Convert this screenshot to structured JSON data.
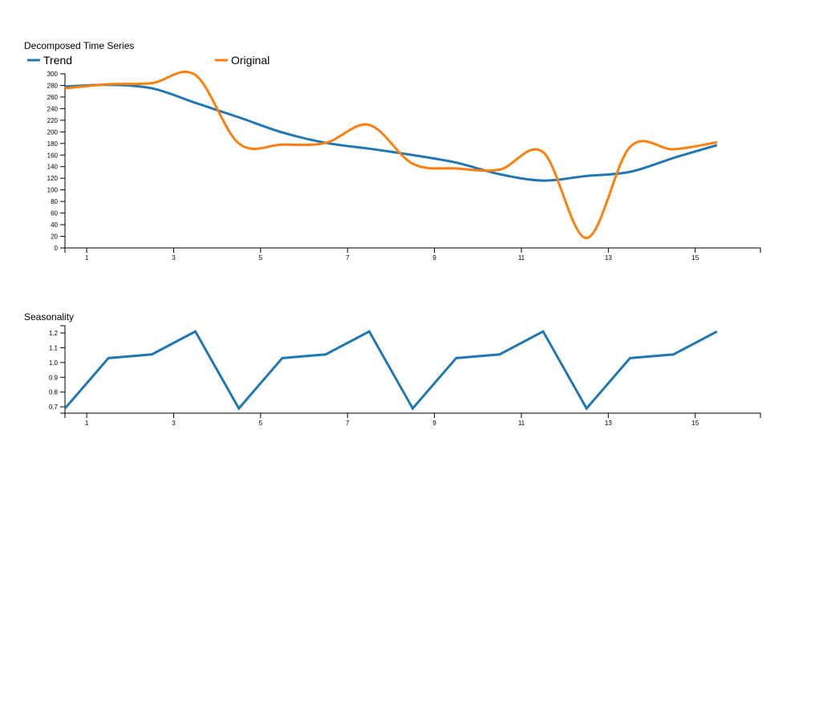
{
  "colors": {
    "trend": "#1f77b4",
    "original": "#ff7f0e",
    "seasonality": "#1f77b4"
  },
  "chart_data": [
    {
      "type": "line",
      "title": "Decomposed Time Series",
      "legend": [
        "Trend",
        "Original"
      ],
      "legend_position": "top-left",
      "x": [
        0.5,
        1.5,
        2.5,
        3.5,
        4.5,
        5.5,
        6.5,
        7.5,
        8.5,
        9.5,
        10.5,
        11.5,
        12.5,
        13.5,
        14.5,
        15.5
      ],
      "xlim": [
        0.5,
        16.5
      ],
      "x_ticks": [
        1,
        3,
        5,
        7,
        9,
        11,
        13,
        15
      ],
      "ylim": [
        0,
        300
      ],
      "y_ticks": [
        0,
        20,
        40,
        60,
        80,
        100,
        120,
        140,
        160,
        180,
        200,
        220,
        240,
        260,
        280,
        300
      ],
      "series": [
        {
          "name": "Trend",
          "values": [
            278,
            281,
            275,
            250,
            225,
            199,
            181,
            171,
            160,
            147,
            127,
            116,
            124,
            131,
            155,
            177
          ]
        },
        {
          "name": "Original",
          "values": [
            275,
            282,
            284,
            298,
            180,
            178,
            181,
            212,
            145,
            137,
            135,
            165,
            17,
            174,
            170,
            182
          ]
        }
      ]
    },
    {
      "type": "line",
      "title": "Seasonality",
      "x": [
        0.5,
        1.5,
        2.5,
        3.5,
        4.5,
        5.5,
        6.5,
        7.5,
        8.5,
        9.5,
        10.5,
        11.5,
        12.5,
        13.5,
        14.5,
        15.5
      ],
      "xlim": [
        0.5,
        16.5
      ],
      "x_ticks": [
        1,
        3,
        5,
        7,
        9,
        11,
        13,
        15
      ],
      "ylim": [
        0.657,
        1.249
      ],
      "y_ticks": [
        "0.7",
        "0.8",
        "0.9",
        "1.0",
        "1.1",
        "1.2"
      ],
      "series": [
        {
          "name": "Seasonality",
          "values": [
            0.689,
            1.03,
            1.055,
            1.21,
            0.689,
            1.03,
            1.055,
            1.21,
            0.689,
            1.03,
            1.055,
            1.21,
            0.689,
            1.03,
            1.055,
            1.21
          ]
        }
      ]
    }
  ]
}
